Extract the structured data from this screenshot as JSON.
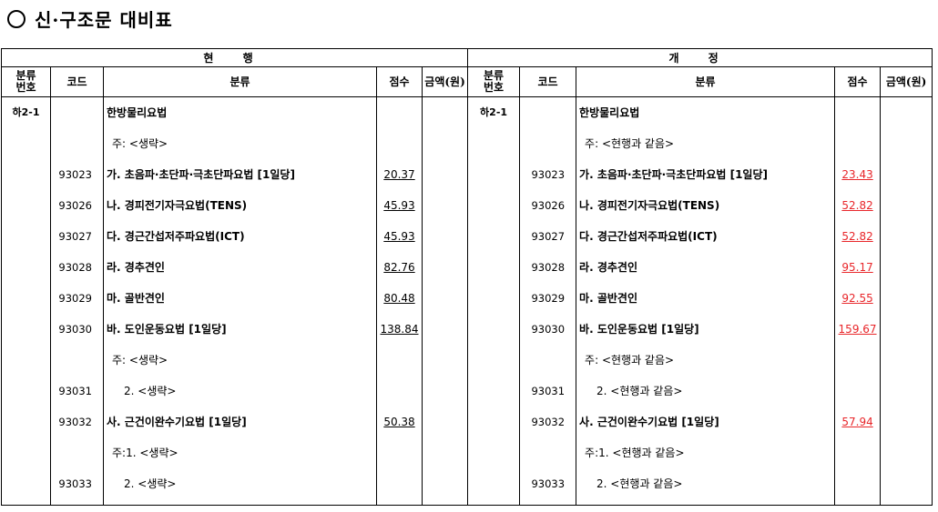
{
  "title": "신·구조문 대비표",
  "colors": {
    "revised_score": "#e8262a"
  },
  "headers": {
    "current": "현 행",
    "revised": "개 정",
    "columns": [
      "분류번호",
      "코드",
      "분류",
      "점수",
      "금액(원)"
    ]
  },
  "current": {
    "rows": [
      {
        "cat": "하2-1",
        "code": "",
        "name": "한방물리요법",
        "score": "",
        "style": "b"
      },
      {
        "cat": "",
        "code": "",
        "name": "주: <생략>",
        "score": "",
        "style": "note"
      },
      {
        "cat": "",
        "code": "93023",
        "name": "가. 초음파·초단파·극초단파요법 [1일당]",
        "score": "20.37",
        "style": "b"
      },
      {
        "cat": "",
        "code": "93026",
        "name": "나. 경피전기자극요법(TENS)",
        "score": "45.93",
        "style": "b"
      },
      {
        "cat": "",
        "code": "93027",
        "name": "다. 경근간섭저주파요법(ICT)",
        "score": "45.93",
        "style": "b"
      },
      {
        "cat": "",
        "code": "93028",
        "name": "라. 경추견인",
        "score": "82.76",
        "style": "b"
      },
      {
        "cat": "",
        "code": "93029",
        "name": "마. 골반견인",
        "score": "80.48",
        "style": "b"
      },
      {
        "cat": "",
        "code": "93030",
        "name": "바. 도인운동요법 [1일당]",
        "score": "138.84",
        "style": "b"
      },
      {
        "cat": "",
        "code": "",
        "name": "주: <생략>",
        "score": "",
        "style": "note"
      },
      {
        "cat": "",
        "code": "93031",
        "name": "2. <생략>",
        "score": "",
        "style": "sub"
      },
      {
        "cat": "",
        "code": "93032",
        "name": "사. 근건이완수기요법 [1일당]",
        "score": "50.38",
        "style": "b"
      },
      {
        "cat": "",
        "code": "",
        "name": "주:1. <생략>",
        "score": "",
        "style": "note"
      },
      {
        "cat": "",
        "code": "93033",
        "name": "2. <생략>",
        "score": "",
        "style": "sub"
      }
    ]
  },
  "revised": {
    "rows": [
      {
        "cat": "하2-1",
        "code": "",
        "name": "한방물리요법",
        "score": "",
        "style": "b"
      },
      {
        "cat": "",
        "code": "",
        "name": "주: <현행과 같음>",
        "score": "",
        "style": "note"
      },
      {
        "cat": "",
        "code": "93023",
        "name": "가. 초음파·초단파·극초단파요법 [1일당]",
        "score": "23.43",
        "style": "b"
      },
      {
        "cat": "",
        "code": "93026",
        "name": "나. 경피전기자극요법(TENS)",
        "score": "52.82",
        "style": "b"
      },
      {
        "cat": "",
        "code": "93027",
        "name": "다. 경근간섭저주파요법(ICT)",
        "score": "52.82",
        "style": "b"
      },
      {
        "cat": "",
        "code": "93028",
        "name": "라. 경추견인",
        "score": "95.17",
        "style": "b"
      },
      {
        "cat": "",
        "code": "93029",
        "name": "마. 골반견인",
        "score": "92.55",
        "style": "b"
      },
      {
        "cat": "",
        "code": "93030",
        "name": "바. 도인운동요법 [1일당]",
        "score": "159.67",
        "style": "b"
      },
      {
        "cat": "",
        "code": "",
        "name": "주: <현행과 같음>",
        "score": "",
        "style": "note"
      },
      {
        "cat": "",
        "code": "93031",
        "name": "2. <현행과 같음>",
        "score": "",
        "style": "sub"
      },
      {
        "cat": "",
        "code": "93032",
        "name": "사. 근건이완수기요법 [1일당]",
        "score": "57.94",
        "style": "b"
      },
      {
        "cat": "",
        "code": "",
        "name": "주:1. <현행과 같음>",
        "score": "",
        "style": "note"
      },
      {
        "cat": "",
        "code": "93033",
        "name": "2. <현행과 같음>",
        "score": "",
        "style": "sub"
      }
    ]
  }
}
